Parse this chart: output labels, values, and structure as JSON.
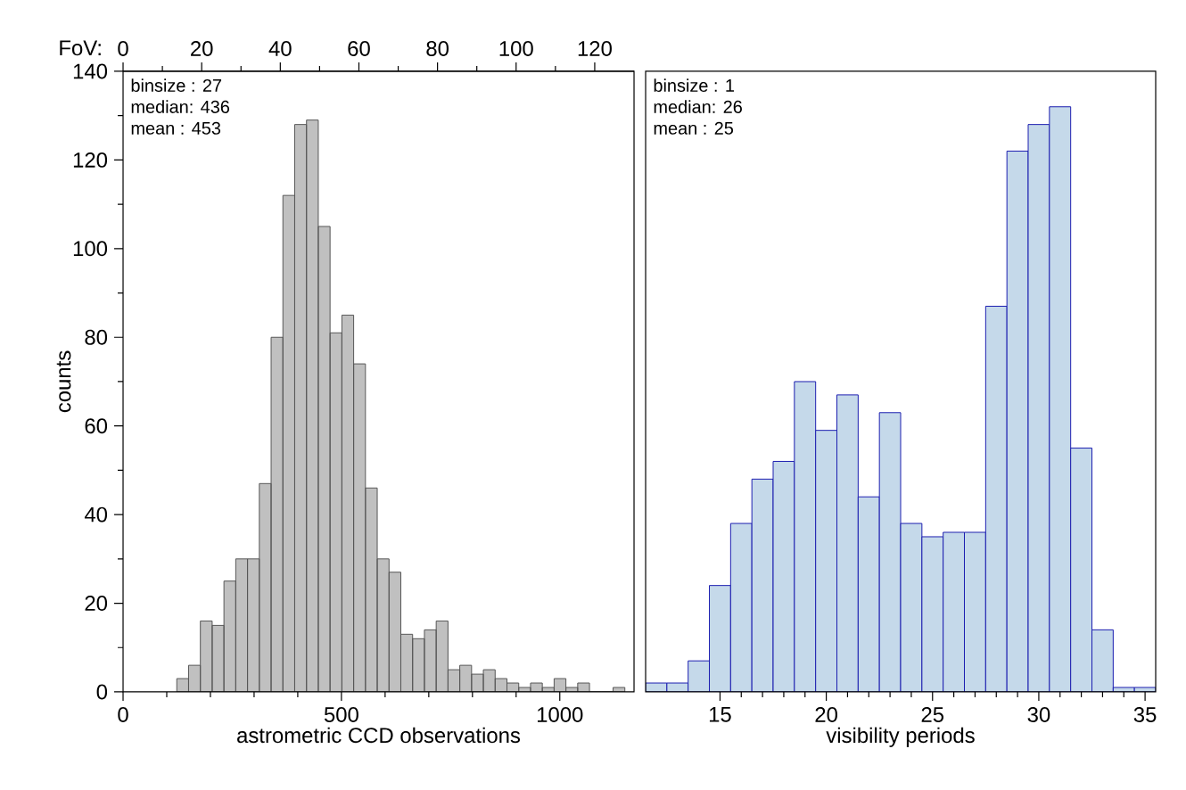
{
  "chart_data": [
    {
      "type": "histogram",
      "xlabel": "astrometric CCD observations",
      "ylabel": "counts",
      "x2label": "FoV:",
      "color": "#c0c0c0",
      "bins": [
        123,
        150,
        177,
        204,
        231,
        258,
        285,
        312,
        339,
        366,
        393,
        420,
        447,
        474,
        501,
        528,
        555,
        582,
        609,
        636,
        663,
        690,
        717,
        744,
        771,
        798,
        825,
        852,
        879,
        906,
        933,
        960,
        987,
        1014,
        1041,
        1068,
        1095,
        1122,
        1149
      ],
      "values": [
        3,
        6,
        16,
        15,
        25,
        30,
        30,
        47,
        80,
        112,
        128,
        129,
        105,
        81,
        85,
        74,
        46,
        30,
        27,
        13,
        12,
        14,
        16,
        5,
        6,
        4,
        5,
        3,
        2,
        1,
        2,
        1,
        3,
        1,
        2,
        0,
        0,
        1
      ],
      "xlim": [
        0,
        1170
      ],
      "xticks": [
        0,
        500,
        1000
      ],
      "ylim": [
        0,
        140
      ],
      "yticks": [
        0,
        20,
        40,
        60,
        80,
        100,
        120,
        140
      ],
      "x2lim": [
        0,
        130
      ],
      "x2ticks": [
        0,
        20,
        40,
        60,
        80,
        100,
        120
      ],
      "annotations": [
        "binsize : 27",
        "median: 436",
        "mean : 453"
      ]
    },
    {
      "type": "histogram",
      "xlabel": "visibility periods",
      "color": "#c5d9ea",
      "bins": [
        11.5,
        12.5,
        13.5,
        14.5,
        15.5,
        16.5,
        17.5,
        18.5,
        19.5,
        20.5,
        21.5,
        22.5,
        23.5,
        24.5,
        25.5,
        26.5,
        27.5,
        28.5,
        29.5,
        30.5,
        31.5,
        32.5,
        33.5,
        34.5,
        35.5
      ],
      "values": [
        2,
        2,
        7,
        24,
        38,
        48,
        52,
        70,
        59,
        67,
        44,
        63,
        38,
        35,
        36,
        36,
        87,
        122,
        128,
        132,
        55,
        14,
        1,
        1
      ],
      "xlim": [
        11.5,
        35.5
      ],
      "xticks": [
        15,
        20,
        25,
        30,
        35
      ],
      "ylim": [
        0,
        140
      ],
      "tick_labels": "x",
      "annotations": [
        "binsize : 1",
        "median: 26",
        "mean : 25"
      ]
    }
  ]
}
